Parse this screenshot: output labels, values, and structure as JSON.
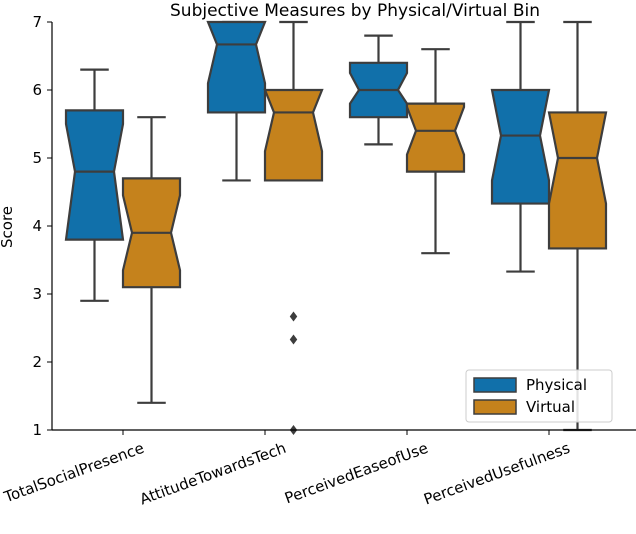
{
  "chart_data": {
    "type": "boxplot",
    "notched": true,
    "title": "Subjective Measures by Physical/Virtual Bin",
    "xlabel": "",
    "ylabel": "Score",
    "ylim": [
      1,
      7
    ],
    "yticks": [
      1,
      2,
      3,
      4,
      5,
      6,
      7
    ],
    "categories": [
      "TotalSocialPresence",
      "AttitudeTowardsTech",
      "PerceivedEaseofUse",
      "PerceivedUsefulness"
    ],
    "legend": {
      "placement": "lower-right",
      "entries": [
        "Physical",
        "Virtual"
      ]
    },
    "series": [
      {
        "name": "Physical",
        "color": "#1170aa",
        "boxes": [
          {
            "whisker_low": 2.9,
            "q1": 3.8,
            "median": 4.8,
            "q3": 5.7,
            "whisker_high": 6.3,
            "notch_low": 3.8,
            "notch_high": 5.5,
            "outliers": []
          },
          {
            "whisker_low": 4.67,
            "q1": 5.67,
            "median": 6.67,
            "q3": 7.0,
            "whisker_high": 7.0,
            "notch_low": 6.1,
            "notch_high": 7.0,
            "outliers": []
          },
          {
            "whisker_low": 5.2,
            "q1": 5.6,
            "median": 6.0,
            "q3": 6.4,
            "whisker_high": 6.8,
            "notch_low": 5.8,
            "notch_high": 6.25,
            "outliers": []
          },
          {
            "whisker_low": 3.33,
            "q1": 4.33,
            "median": 5.33,
            "q3": 6.0,
            "whisker_high": 7.0,
            "notch_low": 4.67,
            "notch_high": 6.0,
            "outliers": []
          }
        ]
      },
      {
        "name": "Virtual",
        "color": "#c5821c",
        "boxes": [
          {
            "whisker_low": 1.4,
            "q1": 3.1,
            "median": 3.9,
            "q3": 4.7,
            "whisker_high": 5.6,
            "notch_low": 3.35,
            "notch_high": 4.45,
            "outliers": []
          },
          {
            "whisker_low": 4.67,
            "q1": 4.67,
            "median": 5.67,
            "q3": 6.0,
            "whisker_high": 7.0,
            "notch_low": 5.1,
            "notch_high": 6.0,
            "outliers": [
              2.67,
              2.33,
              1.0
            ]
          },
          {
            "whisker_low": 3.6,
            "q1": 4.8,
            "median": 5.4,
            "q3": 5.8,
            "whisker_high": 6.6,
            "notch_low": 5.05,
            "notch_high": 5.75,
            "outliers": []
          },
          {
            "whisker_low": 1.0,
            "q1": 3.67,
            "median": 5.0,
            "q3": 5.67,
            "whisker_high": 7.0,
            "notch_low": 4.33,
            "notch_high": 5.67,
            "outliers": []
          }
        ]
      }
    ]
  }
}
